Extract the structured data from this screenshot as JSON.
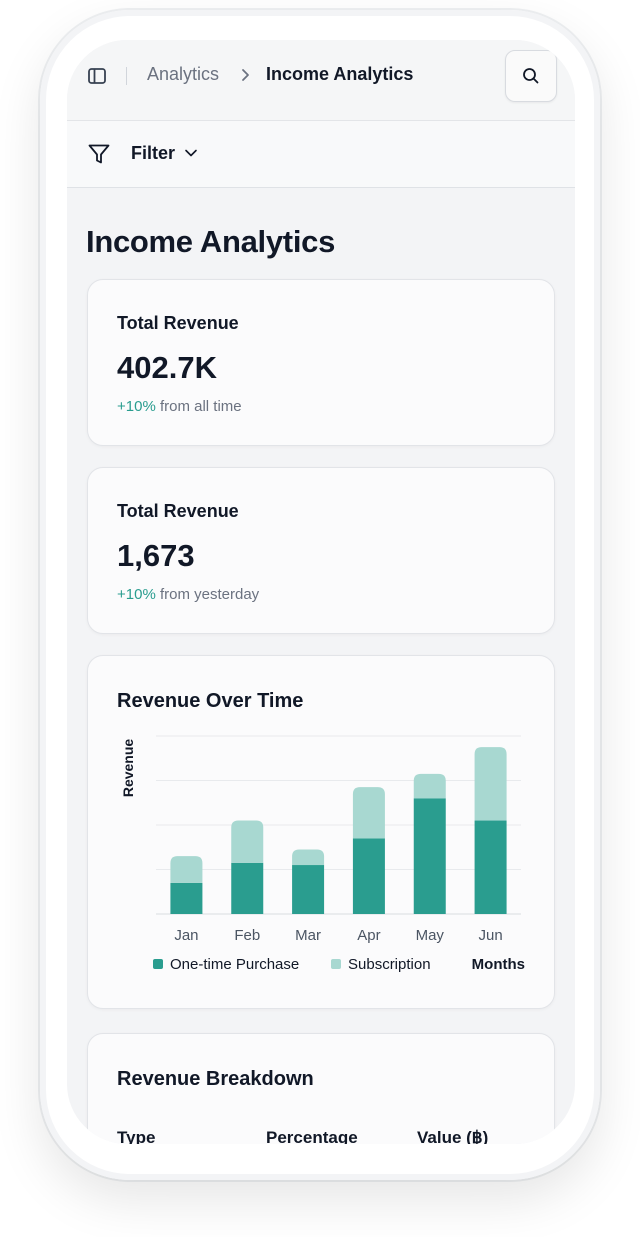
{
  "breadcrumb": {
    "parent": "Analytics",
    "current": "Income Analytics"
  },
  "filter": {
    "label": "Filter"
  },
  "page": {
    "title": "Income Analytics"
  },
  "stats": [
    {
      "label": "Total Revenue",
      "value": "402.7K",
      "change": "+10%",
      "change_suffix": " from all time"
    },
    {
      "label": "Total Revenue",
      "value": "1,673",
      "change": "+10%",
      "change_suffix": " from yesterday"
    }
  ],
  "chart_data": {
    "type": "bar",
    "title": "Revenue Over Time",
    "ylabel": "Revenue",
    "xlabel": "Months",
    "categories": [
      "Jan",
      "Feb",
      "Mar",
      "Apr",
      "May",
      "Jun"
    ],
    "series": [
      {
        "name": "One-time Purchase",
        "values": [
          1.4,
          2.3,
          2.2,
          3.4,
          5.2,
          4.2
        ],
        "color": "#2a9d8f"
      },
      {
        "name": "Subscription",
        "values": [
          1.2,
          1.9,
          0.7,
          2.3,
          1.1,
          3.3
        ],
        "color": "#a8d8d1"
      }
    ],
    "ylim": [
      0,
      8
    ],
    "stacked": true,
    "grid": true,
    "legend_position": "bottom"
  },
  "breakdown": {
    "title": "Revenue Breakdown",
    "columns": [
      "Type",
      "Percentage",
      "Value (฿)"
    ]
  },
  "colors": {
    "accent": "#2a9d8f",
    "accent_light": "#a8d8d1"
  },
  "icons": {
    "sidebar": "sidebar-toggle-icon",
    "search": "search-icon",
    "filter": "filter-funnel-icon",
    "chevron": "chevron-down-icon",
    "breadcrumb_separator": "chevron-right-icon"
  }
}
